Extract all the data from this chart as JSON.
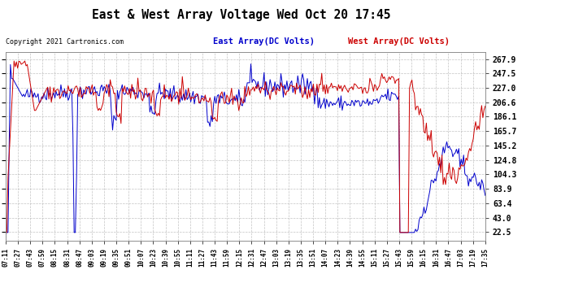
{
  "title": "East & West Array Voltage Wed Oct 20 17:45",
  "copyright": "Copyright 2021 Cartronics.com",
  "legend_east": "East Array(DC Volts)",
  "legend_west": "West Array(DC Volts)",
  "color_east": "#0000cc",
  "color_west": "#cc0000",
  "color_bg": "#ffffff",
  "color_plot_bg": "#ffffff",
  "color_title": "#000000",
  "color_copyright": "#000000",
  "color_grid": "#aaaaaa",
  "color_tick_labels": "#000000",
  "yticks": [
    22.5,
    43.0,
    63.4,
    83.9,
    104.3,
    124.8,
    145.2,
    165.7,
    186.1,
    206.6,
    227.0,
    247.5,
    267.9
  ],
  "ylim": [
    10,
    278
  ],
  "xtick_labels": [
    "07:11",
    "07:27",
    "07:43",
    "07:59",
    "08:15",
    "08:31",
    "08:47",
    "09:03",
    "09:19",
    "09:35",
    "09:51",
    "10:07",
    "10:23",
    "10:39",
    "10:55",
    "11:11",
    "11:27",
    "11:43",
    "11:59",
    "12:15",
    "12:31",
    "12:47",
    "13:03",
    "13:19",
    "13:35",
    "13:51",
    "14:07",
    "14:23",
    "14:39",
    "14:55",
    "15:11",
    "15:27",
    "15:43",
    "15:59",
    "16:15",
    "16:31",
    "16:47",
    "17:03",
    "17:19",
    "17:35"
  ],
  "figsize": [
    6.9,
    3.75
  ],
  "dpi": 100
}
